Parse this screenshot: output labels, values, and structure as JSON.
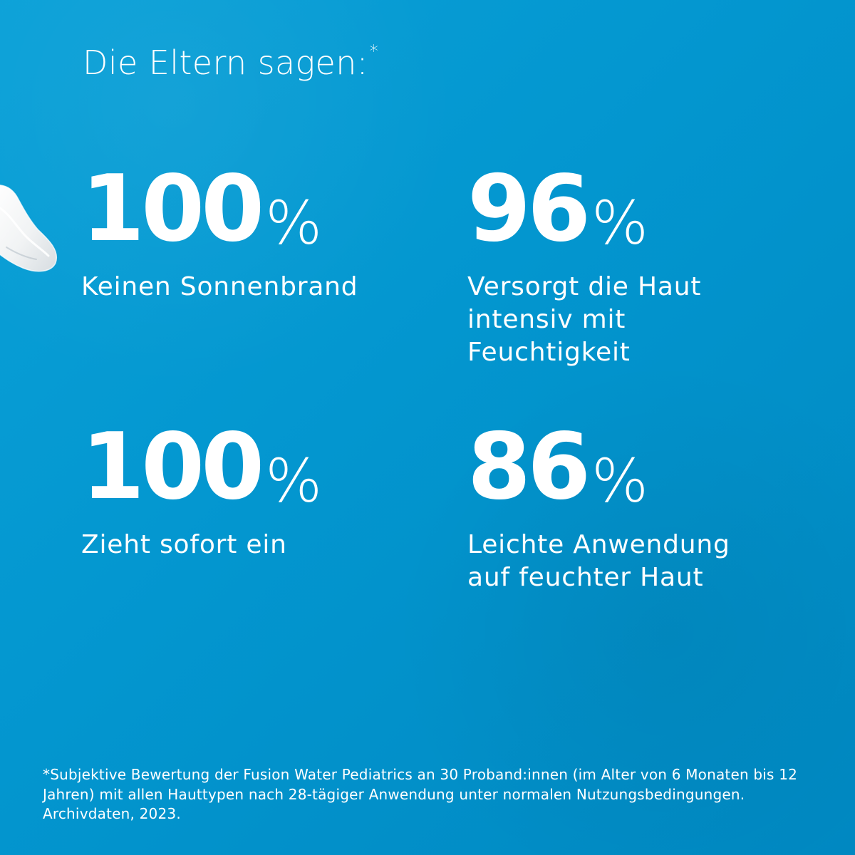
{
  "headline": {
    "text": "Die Eltern sagen:",
    "asterisk": "*"
  },
  "stats": [
    {
      "value": "100",
      "unit": "%",
      "label": "Keinen Sonnenbrand"
    },
    {
      "value": "96",
      "unit": "%",
      "label": "Versorgt die Haut intensiv mit Feuchtigkeit"
    },
    {
      "value": "100",
      "unit": "%",
      "label": "Zieht sofort ein"
    },
    {
      "value": "86",
      "unit": "%",
      "label": "Leichte Anwendung auf feuchter Haut"
    }
  ],
  "footnote": "*Subjektive Bewertung der Fusion Water Pediatrics an 30 Proband:innen (im Alter von 6 Monaten bis 12 Jahren) mit allen Hauttypen nach 28-tägiger Anwendung unter normalen Nutzungsbedingungen. Archivdaten, 2023.",
  "colors": {
    "background_light": "#0aa1d8",
    "background_dark": "#0088c1",
    "text": "#ffffff",
    "lotion": "#f4f5f6"
  },
  "decorative": {
    "lotion_drop_icon": "cream-drop-icon"
  }
}
